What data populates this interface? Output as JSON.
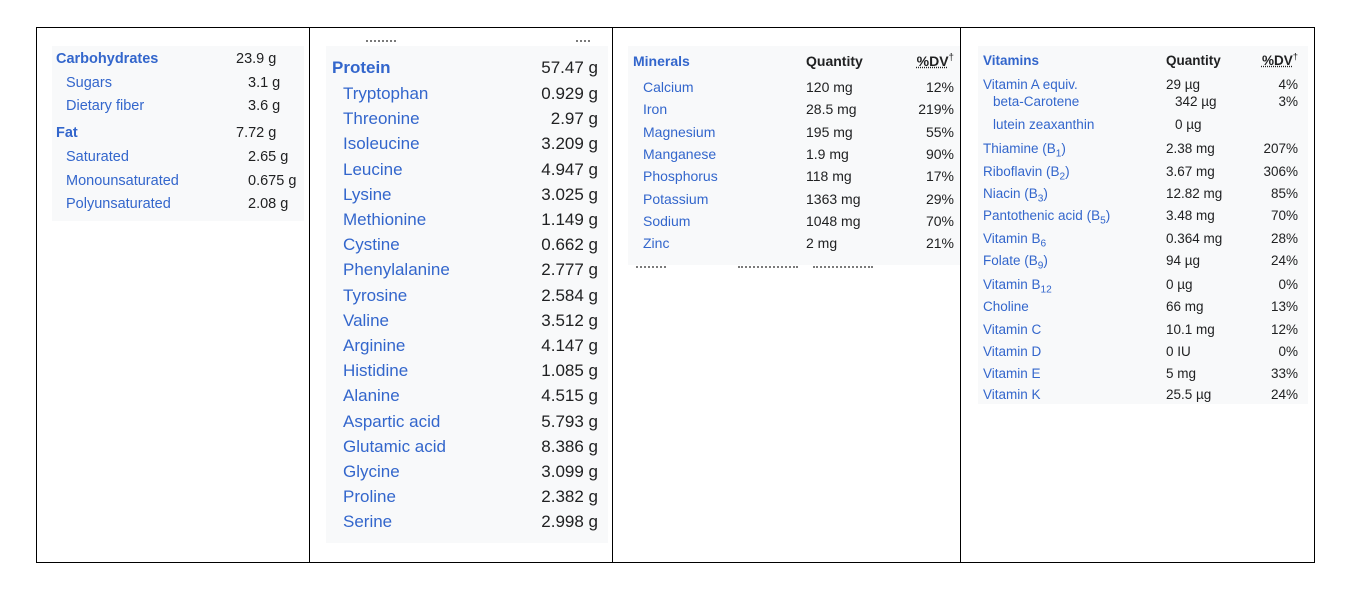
{
  "carbs_fat": {
    "rows": [
      {
        "name": "Carbohydrates",
        "value": "23.9 g"
      },
      {
        "name": "Sugars",
        "value": "3.1 g"
      },
      {
        "name": "Dietary fiber",
        "value": "3.6 g"
      },
      {
        "name": "Fat",
        "value": "7.72 g"
      },
      {
        "name": "Saturated",
        "value": "2.65 g"
      },
      {
        "name": "Monounsaturated",
        "value": "0.675 g"
      },
      {
        "name": "Polyunsaturated",
        "value": "2.08 g"
      }
    ]
  },
  "protein": {
    "header": {
      "name": "Protein",
      "value": "57.47 g"
    },
    "rows": [
      {
        "name": "Tryptophan",
        "value": "0.929 g"
      },
      {
        "name": "Threonine",
        "value": "2.97 g"
      },
      {
        "name": "Isoleucine",
        "value": "3.209 g"
      },
      {
        "name": "Leucine",
        "value": "4.947 g"
      },
      {
        "name": "Lysine",
        "value": "3.025 g"
      },
      {
        "name": "Methionine",
        "value": "1.149 g"
      },
      {
        "name": "Cystine",
        "value": "0.662 g"
      },
      {
        "name": "Phenylalanine",
        "value": "2.777 g"
      },
      {
        "name": "Tyrosine",
        "value": "2.584 g"
      },
      {
        "name": "Valine",
        "value": "3.512 g"
      },
      {
        "name": "Arginine",
        "value": "4.147 g"
      },
      {
        "name": "Histidine",
        "value": "1.085 g"
      },
      {
        "name": "Alanine",
        "value": "4.515 g"
      },
      {
        "name": "Aspartic acid",
        "value": "5.793 g"
      },
      {
        "name": "Glutamic acid",
        "value": "8.386 g"
      },
      {
        "name": "Glycine",
        "value": "3.099 g"
      },
      {
        "name": "Proline",
        "value": "2.382 g"
      },
      {
        "name": "Serine",
        "value": "2.998 g"
      }
    ]
  },
  "minerals": {
    "header": {
      "name": "Minerals",
      "quantity": "Quantity",
      "dv": "%DV",
      "dagger": "†"
    },
    "rows": [
      {
        "name": "Calcium",
        "qty": "120 mg",
        "dv": "12%"
      },
      {
        "name": "Iron",
        "qty": "28.5 mg",
        "dv": "219%"
      },
      {
        "name": "Magnesium",
        "qty": "195 mg",
        "dv": "55%"
      },
      {
        "name": "Manganese",
        "qty": "1.9 mg",
        "dv": "90%"
      },
      {
        "name": "Phosphorus",
        "qty": "118 mg",
        "dv": "17%"
      },
      {
        "name": "Potassium",
        "qty": "1363 mg",
        "dv": "29%"
      },
      {
        "name": "Sodium",
        "qty": "1048 mg",
        "dv": "70%"
      },
      {
        "name": "Zinc",
        "qty": "2 mg",
        "dv": "21%"
      }
    ]
  },
  "vitamins": {
    "header": {
      "name": "Vitamins",
      "quantity": "Quantity",
      "dv": "%DV",
      "dagger": "†"
    },
    "rows": [
      {
        "name": "Vitamin A equiv.",
        "qty": "29 µg",
        "dv": "4%"
      },
      {
        "name": "beta-Carotene",
        "qty": "342 µg",
        "dv": "3%"
      },
      {
        "name": "lutein zeaxanthin",
        "qty": "0 µg",
        "dv": ""
      },
      {
        "name": "Thiamine (B",
        "sub": "1",
        "tail": ")",
        "qty": "2.38 mg",
        "dv": "207%"
      },
      {
        "name": "Riboflavin (B",
        "sub": "2",
        "tail": ")",
        "qty": "3.67 mg",
        "dv": "306%"
      },
      {
        "name": "Niacin (B",
        "sub": "3",
        "tail": ")",
        "qty": "12.82 mg",
        "dv": "85%"
      },
      {
        "name": "Pantothenic acid (B",
        "sub": "5",
        "tail": ")",
        "qty": "3.48 mg",
        "dv": "70%"
      },
      {
        "name": "Vitamin B",
        "sub": "6",
        "tail": "",
        "qty": "0.364 mg",
        "dv": "28%"
      },
      {
        "name": "Folate (B",
        "sub": "9",
        "tail": ")",
        "qty": "94 µg",
        "dv": "24%"
      },
      {
        "name": "Vitamin B",
        "sub": "12",
        "tail": "",
        "qty": "0 µg",
        "dv": "0%"
      },
      {
        "name": "Choline",
        "qty": "66 mg",
        "dv": "13%"
      },
      {
        "name": "Vitamin C",
        "qty": "10.1 mg",
        "dv": "12%"
      },
      {
        "name": "Vitamin D",
        "qty": "0 IU",
        "dv": "0%"
      },
      {
        "name": "Vitamin E",
        "qty": "5 mg",
        "dv": "33%"
      },
      {
        "name": "Vitamin K",
        "qty": "25.5 µg",
        "dv": "24%"
      }
    ]
  }
}
